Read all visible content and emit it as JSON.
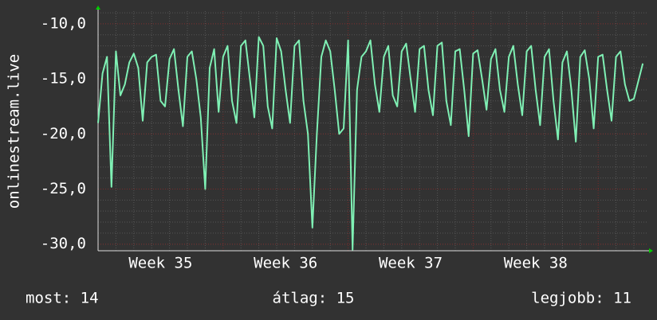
{
  "chart_data": {
    "type": "line",
    "ylabel": "onlinestream.live",
    "xlim": [
      0,
      30.76
    ],
    "ylim": [
      -30.6,
      -8.85
    ],
    "yticks": [
      {
        "value": -30,
        "label": "-30,0"
      },
      {
        "value": -25,
        "label": "-25,0"
      },
      {
        "value": -20,
        "label": "-20,0"
      },
      {
        "value": -15,
        "label": "-15,0"
      },
      {
        "value": -10,
        "label": "-10,0"
      }
    ],
    "xticks": [
      {
        "value": 3.5,
        "label": "Week 35"
      },
      {
        "value": 10.5,
        "label": "Week 36"
      },
      {
        "value": 17.5,
        "label": "Week 37"
      },
      {
        "value": 24.5,
        "label": "Week 38"
      }
    ],
    "grid": true,
    "x": [
      0,
      0.25,
      0.5,
      0.75,
      1,
      1.25,
      1.5,
      1.75,
      2,
      2.25,
      2.5,
      2.75,
      3,
      3.25,
      3.5,
      3.75,
      4,
      4.25,
      4.5,
      4.75,
      5,
      5.25,
      5.5,
      5.75,
      6,
      6.25,
      6.5,
      6.75,
      7,
      7.25,
      7.5,
      7.75,
      8,
      8.25,
      8.5,
      8.75,
      9,
      9.25,
      9.5,
      9.75,
      10,
      10.25,
      10.5,
      10.75,
      11,
      11.25,
      11.5,
      11.75,
      12,
      12.25,
      12.5,
      12.75,
      13,
      13.25,
      13.5,
      13.75,
      14,
      14.25,
      14.5,
      14.75,
      15,
      15.25,
      15.5,
      15.75,
      16,
      16.25,
      16.5,
      16.75,
      17,
      17.25,
      17.5,
      17.75,
      18,
      18.25,
      18.5,
      18.75,
      19,
      19.25,
      19.5,
      19.75,
      20,
      20.25,
      20.5,
      20.75,
      21,
      21.25,
      21.5,
      21.75,
      22,
      22.25,
      22.5,
      22.75,
      23,
      23.25,
      23.5,
      23.75,
      24,
      24.25,
      24.5,
      24.75,
      25,
      25.25,
      25.5,
      25.75,
      26,
      26.25,
      26.5,
      26.75,
      27,
      27.25,
      27.5,
      27.75,
      28,
      28.25,
      28.5,
      28.75,
      29,
      29.25,
      29.5,
      29.75,
      30,
      30.25,
      30.5
    ],
    "series": [
      {
        "color": "#7ff0b4",
        "values": [
          -19,
          -14.5,
          -13,
          -24.8,
          -12.5,
          -16.5,
          -15.5,
          -13.5,
          -12.7,
          -14,
          -18.8,
          -13.5,
          -13,
          -12.8,
          -17,
          -17.5,
          -13.2,
          -12.3,
          -16,
          -19.3,
          -13,
          -12.5,
          -15,
          -18.5,
          -25,
          -14,
          -12.3,
          -18,
          -13,
          -12,
          -17,
          -19,
          -12,
          -11.5,
          -15,
          -18.5,
          -11.2,
          -12,
          -17.5,
          -19.5,
          -11.3,
          -12.5,
          -16,
          -19,
          -12,
          -11.5,
          -17,
          -20,
          -28.5,
          -20,
          -13,
          -11.5,
          -12.5,
          -16,
          -20,
          -19.5,
          -11.5,
          -30.5,
          -16,
          -13,
          -12.5,
          -11.5,
          -15.5,
          -18,
          -13,
          -12,
          -16.5,
          -17.5,
          -12.5,
          -11.8,
          -15,
          -18,
          -12.3,
          -12,
          -16,
          -18.3,
          -12,
          -11.7,
          -17,
          -19.2,
          -12.5,
          -12.3,
          -16,
          -20.2,
          -12.7,
          -12.4,
          -15,
          -17.8,
          -13.2,
          -12.3,
          -16,
          -18,
          -13,
          -12,
          -15.5,
          -18.3,
          -12.5,
          -12,
          -16,
          -19.2,
          -13,
          -12.3,
          -17,
          -20.5,
          -13.5,
          -12.5,
          -16,
          -20.7,
          -13,
          -12.4,
          -15,
          -19.5,
          -13,
          -12.8,
          -16,
          -18.8,
          -13,
          -12.5,
          -15.5,
          -17,
          -16.8,
          -15.2,
          -13.6
        ]
      }
    ]
  },
  "footer": [
    "most: 14",
    "átlag: 15",
    "legjobb: 11"
  ]
}
